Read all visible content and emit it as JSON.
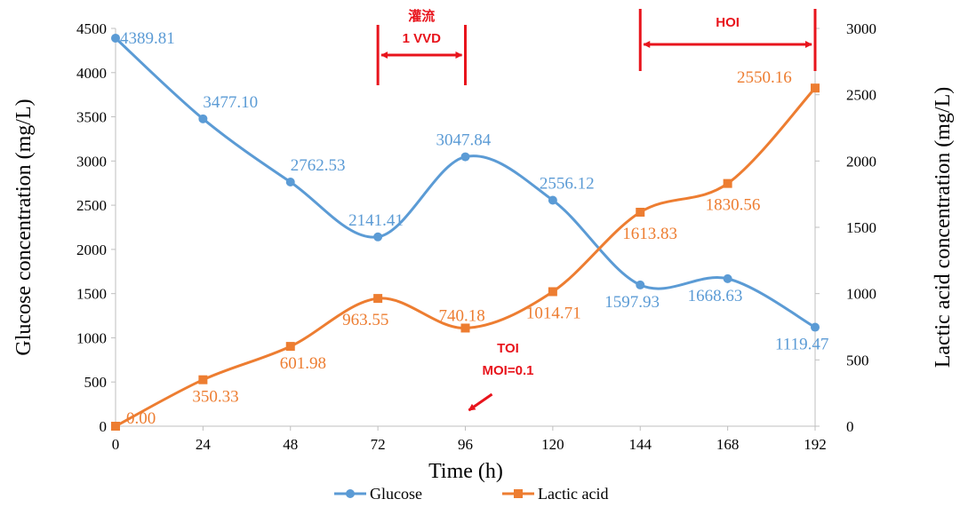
{
  "chart_data": {
    "type": "line",
    "smooth": true,
    "x": [
      0,
      24,
      48,
      72,
      96,
      120,
      144,
      168,
      192
    ],
    "xlabel": "Time (h)",
    "ylabel_left": "Glucose concentration (mg/L)",
    "ylabel_right": "Lactic acid concentration (mg/L)",
    "ylim_left": [
      0,
      4500
    ],
    "ylim_right": [
      0,
      3000
    ],
    "y_ticks_left": [
      0,
      500,
      1000,
      1500,
      2000,
      2500,
      3000,
      3500,
      4000,
      4500
    ],
    "y_ticks_right": [
      0,
      500,
      1000,
      1500,
      2000,
      2500,
      3000
    ],
    "grid": false,
    "legend_position": "bottom",
    "series": [
      {
        "name": "Glucose",
        "axis": "left",
        "color": "#5b9bd5",
        "marker": "circle",
        "values": [
          4389.81,
          3477.1,
          2762.53,
          2141.41,
          3047.84,
          2556.12,
          1597.93,
          1668.63,
          1119.47
        ],
        "labels": [
          "4389.81",
          "3477.10",
          "2762.53",
          "2141.41",
          "3047.84",
          "2556.12",
          "1597.93",
          "1668.63",
          "1119.47"
        ]
      },
      {
        "name": "Lactic acid",
        "axis": "right",
        "color": "#ed7d31",
        "marker": "square",
        "values": [
          0.0,
          350.33,
          601.98,
          963.55,
          740.18,
          1014.71,
          1613.83,
          1830.56,
          2550.16
        ],
        "labels": [
          "0.00",
          "350.33",
          "601.98",
          "963.55",
          "740.18",
          "1014.71",
          "1613.83",
          "1830.56",
          "2550.16"
        ]
      }
    ],
    "annotations": {
      "color": "#e8141c",
      "perfusion_label": "灌流",
      "perfusion_rate": "1 VVD",
      "perfusion_start_x": 72,
      "perfusion_end_x": 96,
      "hoi_label": "HOI",
      "hoi_start_x": 144,
      "hoi_end_x": 192,
      "toi_label": "TOI",
      "moi_label": "MOI=0.1",
      "toi_x": 96
    }
  }
}
